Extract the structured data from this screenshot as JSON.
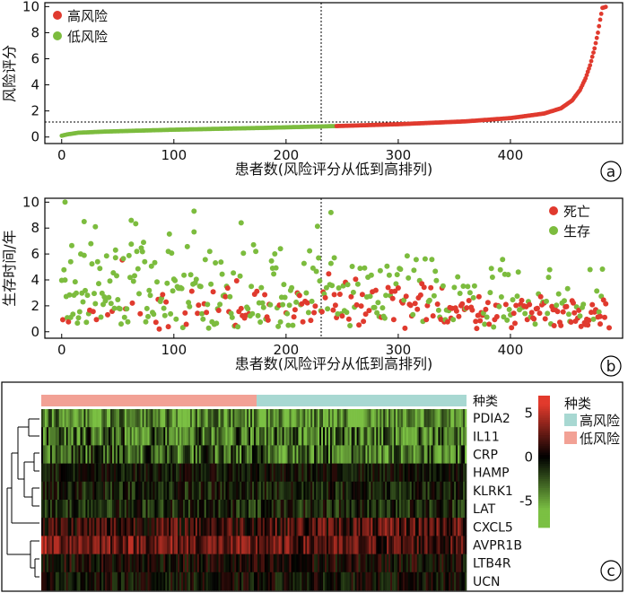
{
  "colors": {
    "high_risk_red": "#e03a2e",
    "low_risk_green": "#7cbc3e",
    "death_red": "#e03a2e",
    "alive_green": "#7cbc3e",
    "group_bar_low": "#f2a195",
    "group_bar_high": "#a8d8d2",
    "heat_high": "#e23a2c",
    "heat_mid": "#000000",
    "heat_low": "#7bc043"
  },
  "chart_data": [
    {
      "type": "scatter",
      "panel_label": "a",
      "xlabel": "患者数(风险评分从低到高排列)",
      "ylabel": "风险评分",
      "xlim": [
        -15,
        500
      ],
      "ylim": [
        -0.5,
        10.3
      ],
      "xticks": [
        0,
        100,
        200,
        300,
        400
      ],
      "yticks": [
        0,
        2,
        4,
        6,
        8,
        10
      ],
      "cutoff_x": 245,
      "cutoff_y": 0.85,
      "n_patients": 486,
      "legend_position": "top-left",
      "series": [
        {
          "name": "高风险",
          "color": "#e03a2e"
        },
        {
          "name": "低风险",
          "color": "#7cbc3e"
        }
      ],
      "risk_score_curve": [
        [
          0,
          0.1
        ],
        [
          5,
          0.2
        ],
        [
          15,
          0.33
        ],
        [
          40,
          0.42
        ],
        [
          100,
          0.56
        ],
        [
          180,
          0.7
        ],
        [
          245,
          0.84
        ],
        [
          300,
          0.98
        ],
        [
          360,
          1.2
        ],
        [
          400,
          1.45
        ],
        [
          430,
          1.8
        ],
        [
          445,
          2.2
        ],
        [
          455,
          2.8
        ],
        [
          462,
          3.6
        ],
        [
          467,
          4.5
        ],
        [
          471,
          5.5
        ],
        [
          475,
          6.8
        ],
        [
          478,
          8.0
        ],
        [
          480,
          9.0
        ],
        [
          482,
          9.9
        ],
        [
          486,
          10.0
        ]
      ]
    },
    {
      "type": "scatter",
      "panel_label": "b",
      "xlabel": "患者数(风险评分从低到高排列)",
      "ylabel": "生存时间/年",
      "xlim": [
        -15,
        500
      ],
      "ylim": [
        -0.5,
        10.3
      ],
      "xticks": [
        0,
        100,
        200,
        300,
        400
      ],
      "yticks": [
        0,
        2,
        4,
        6,
        8,
        10
      ],
      "cutoff_x": 245,
      "legend_position": "top-right",
      "series": [
        {
          "name": "死亡",
          "color": "#e03a2e"
        },
        {
          "name": "生存",
          "color": "#7cbc3e"
        }
      ],
      "points_sample": [
        [
          3,
          10.0
        ],
        [
          8,
          5.4
        ],
        [
          20,
          8.5
        ],
        [
          30,
          8.1
        ],
        [
          48,
          6.3
        ],
        [
          62,
          8.6
        ],
        [
          95,
          6.2
        ],
        [
          118,
          9.3
        ],
        [
          160,
          8.4
        ],
        [
          195,
          6.4
        ],
        [
          240,
          9.2
        ],
        [
          243,
          5.7
        ],
        [
          480,
          0.6
        ],
        [
          488,
          0.3
        ]
      ]
    },
    {
      "type": "heatmap",
      "panel_label": "c",
      "annotation_title": "种类",
      "groups": [
        {
          "name": "高风险",
          "color": "#a8d8d2"
        },
        {
          "name": "低风险",
          "color": "#f2a195"
        }
      ],
      "genes": [
        "PDIA2",
        "IL11",
        "CRP",
        "HAMP",
        "KLRK1",
        "LAT",
        "CXCL5",
        "AVPR1B",
        "LTB4R",
        "UCN"
      ],
      "colorbar_ticks": [
        5,
        0,
        -5
      ],
      "colorbar_range": [
        -8,
        7
      ],
      "low_risk_fraction": 0.5
    }
  ]
}
